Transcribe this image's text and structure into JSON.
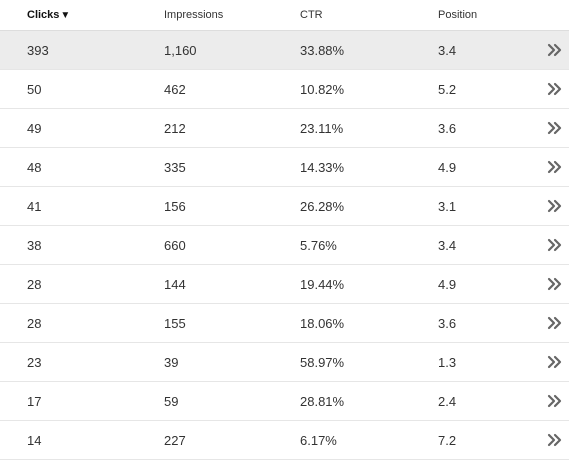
{
  "table": {
    "headers": {
      "clicks": "Clicks",
      "sort_indicator": "▼",
      "impressions": "Impressions",
      "ctr": "CTR",
      "position": "Position"
    },
    "selected_row": 0,
    "rows": [
      {
        "clicks": "393",
        "impressions": "1,160",
        "ctr": "33.88%",
        "position": "3.4"
      },
      {
        "clicks": "50",
        "impressions": "462",
        "ctr": "10.82%",
        "position": "5.2"
      },
      {
        "clicks": "49",
        "impressions": "212",
        "ctr": "23.11%",
        "position": "3.6"
      },
      {
        "clicks": "48",
        "impressions": "335",
        "ctr": "14.33%",
        "position": "4.9"
      },
      {
        "clicks": "41",
        "impressions": "156",
        "ctr": "26.28%",
        "position": "3.1"
      },
      {
        "clicks": "38",
        "impressions": "660",
        "ctr": "5.76%",
        "position": "3.4"
      },
      {
        "clicks": "28",
        "impressions": "144",
        "ctr": "19.44%",
        "position": "4.9"
      },
      {
        "clicks": "28",
        "impressions": "155",
        "ctr": "18.06%",
        "position": "3.6"
      },
      {
        "clicks": "23",
        "impressions": "39",
        "ctr": "58.97%",
        "position": "1.3"
      },
      {
        "clicks": "17",
        "impressions": "59",
        "ctr": "28.81%",
        "position": "2.4"
      },
      {
        "clicks": "14",
        "impressions": "227",
        "ctr": "6.17%",
        "position": "7.2"
      }
    ],
    "row_action_icon": "double-chevron-right-icon",
    "colors": {
      "selected_row_bg": "#ececec",
      "icon": "#666666"
    }
  }
}
